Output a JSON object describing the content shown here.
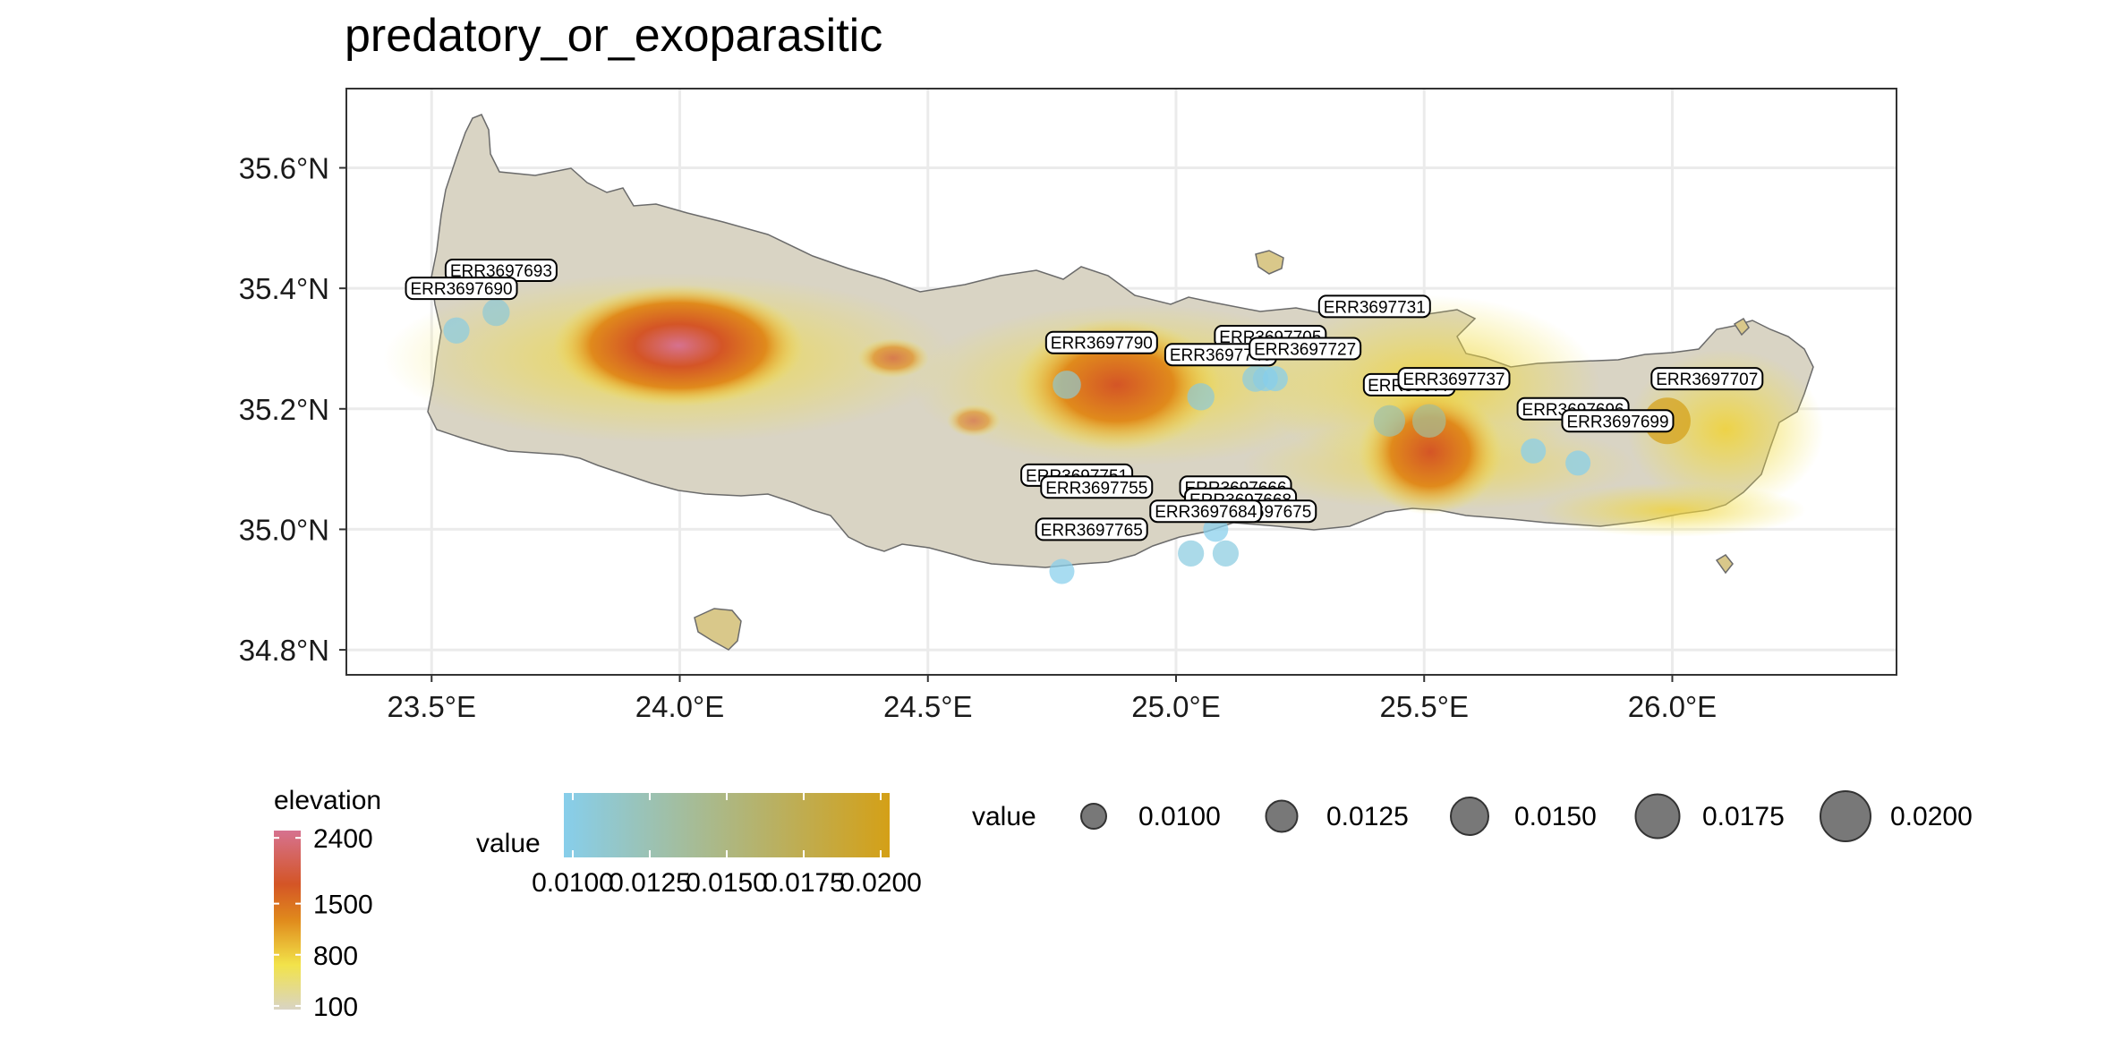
{
  "title": "predatory_or_exoparasitic",
  "axes": {
    "x_ticks": [
      {
        "lon": 23.5,
        "label": "23.5°E"
      },
      {
        "lon": 24.0,
        "label": "24.0°E"
      },
      {
        "lon": 24.5,
        "label": "24.5°E"
      },
      {
        "lon": 25.0,
        "label": "25.0°E"
      },
      {
        "lon": 25.5,
        "label": "25.5°E"
      },
      {
        "lon": 26.0,
        "label": "26.0°E"
      }
    ],
    "y_ticks": [
      {
        "lat": 35.6,
        "label": "35.6°N"
      },
      {
        "lat": 35.4,
        "label": "35.4°N"
      },
      {
        "lat": 35.2,
        "label": "35.2°N"
      },
      {
        "lat": 35.0,
        "label": "35.0°N"
      },
      {
        "lat": 34.8,
        "label": "34.8°N"
      }
    ],
    "xlim": [
      23.33,
      26.45
    ],
    "ylim": [
      34.76,
      35.73
    ]
  },
  "colors": {
    "grid": "#ebebeb",
    "elevation_low": "#d9d4c4",
    "elevation_mid": "#f2e34a",
    "elevation_high1": "#e08a1c",
    "elevation_high2": "#d45526",
    "elevation_peak": "#d6728f",
    "value_low": "#87ceeb",
    "value_high": "#d4a017",
    "size_point": "#606060"
  },
  "chart_data": {
    "type": "scatter",
    "sites": [
      {
        "id": "ERR3697693",
        "lon": 23.63,
        "lat": 35.36,
        "value": 0.011
      },
      {
        "id": "ERR3697690",
        "lon": 23.55,
        "lat": 35.33,
        "value": 0.0105
      },
      {
        "id": "ERR3697790",
        "lon": 24.78,
        "lat": 35.24,
        "value": 0.0115
      },
      {
        "id": "ERR3697746",
        "lon": 25.05,
        "lat": 35.22,
        "value": 0.011
      },
      {
        "id": "ERR3697731",
        "lon": 25.18,
        "lat": 35.25,
        "value": 0.01
      },
      {
        "id": "ERR3697727",
        "lon": 25.16,
        "lat": 35.25,
        "value": 0.0105
      },
      {
        "id": "ERR3697737",
        "lon": 25.51,
        "lat": 35.18,
        "value": 0.014
      },
      {
        "id": "ERR3697707",
        "lon": 25.99,
        "lat": 35.18,
        "value": 0.02
      },
      {
        "id": "ERR3697699",
        "lon": 25.81,
        "lat": 35.11,
        "value": 0.01
      },
      {
        "id": "ERR3697755",
        "lon": 25.08,
        "lat": 35.0,
        "value": 0.01
      },
      {
        "id": "ERR3697684",
        "lon": 25.1,
        "lat": 34.96,
        "value": 0.0105
      },
      {
        "id": "ERR3697765",
        "lon": 24.77,
        "lat": 34.93,
        "value": 0.01
      }
    ],
    "extra_points": [
      {
        "lon": 25.43,
        "lat": 35.18,
        "value": 0.013
      },
      {
        "lon": 25.72,
        "lat": 35.13,
        "value": 0.01
      },
      {
        "lon": 25.03,
        "lat": 34.96,
        "value": 0.0105
      },
      {
        "lon": 25.2,
        "lat": 35.25,
        "value": 0.01
      }
    ],
    "labels_plain": [
      {
        "id": "ERR3697693",
        "lon": 23.64,
        "lat": 35.43
      },
      {
        "id": "ERR3697690",
        "lon": 23.56,
        "lat": 35.4
      },
      {
        "id": "ERR3697731",
        "lon": 25.4,
        "lat": 35.37
      },
      {
        "id": "ERR3697790",
        "lon": 24.85,
        "lat": 35.31
      },
      {
        "id": "ERR3697746",
        "lon": 25.09,
        "lat": 35.29
      },
      {
        "id": "ERR3697727",
        "lon": 25.26,
        "lat": 35.3
      },
      {
        "id": "ERR3697737",
        "lon": 25.56,
        "lat": 35.25
      },
      {
        "id": "ERR3697707",
        "lon": 26.07,
        "lat": 35.25
      },
      {
        "id": "ERR3697699",
        "lon": 25.89,
        "lat": 35.18
      },
      {
        "id": "ERR3697755",
        "lon": 24.84,
        "lat": 35.07
      },
      {
        "id": "ERR3697684",
        "lon": 25.06,
        "lat": 35.03
      },
      {
        "id": "ERR3697765",
        "lon": 24.83,
        "lat": 35.0
      }
    ],
    "labels_partial": [
      {
        "text": "ERR3697705",
        "lon": 25.19,
        "lat": 35.32
      },
      {
        "text": "ERR36977",
        "lon": 25.47,
        "lat": 35.24
      },
      {
        "text": "ERR3697696",
        "lon": 25.8,
        "lat": 35.2
      },
      {
        "text": "ERR3697751",
        "lon": 24.8,
        "lat": 35.09
      },
      {
        "text": "ERR3697666",
        "lon": 25.12,
        "lat": 35.07
      },
      {
        "text": "ERR3697668",
        "lon": 25.13,
        "lat": 35.05
      },
      {
        "text": "ERR3697675",
        "lon": 25.17,
        "lat": 35.03
      }
    ]
  },
  "legend_elevation": {
    "title": "elevation",
    "ticks": [
      {
        "value": 2400,
        "label": "2400"
      },
      {
        "value": 1500,
        "label": "1500"
      },
      {
        "value": 800,
        "label": "800"
      },
      {
        "value": 100,
        "label": "100"
      }
    ]
  },
  "legend_value_color": {
    "title": "value",
    "ticks": [
      "0.0100",
      "0.0125",
      "0.0150",
      "0.0175",
      "0.0200"
    ]
  },
  "legend_value_size": {
    "title": "value",
    "entries": [
      {
        "value": 0.01,
        "label": "0.0100"
      },
      {
        "value": 0.0125,
        "label": "0.0125"
      },
      {
        "value": 0.015,
        "label": "0.0150"
      },
      {
        "value": 0.0175,
        "label": "0.0175"
      },
      {
        "value": 0.02,
        "label": "0.0200"
      }
    ]
  }
}
